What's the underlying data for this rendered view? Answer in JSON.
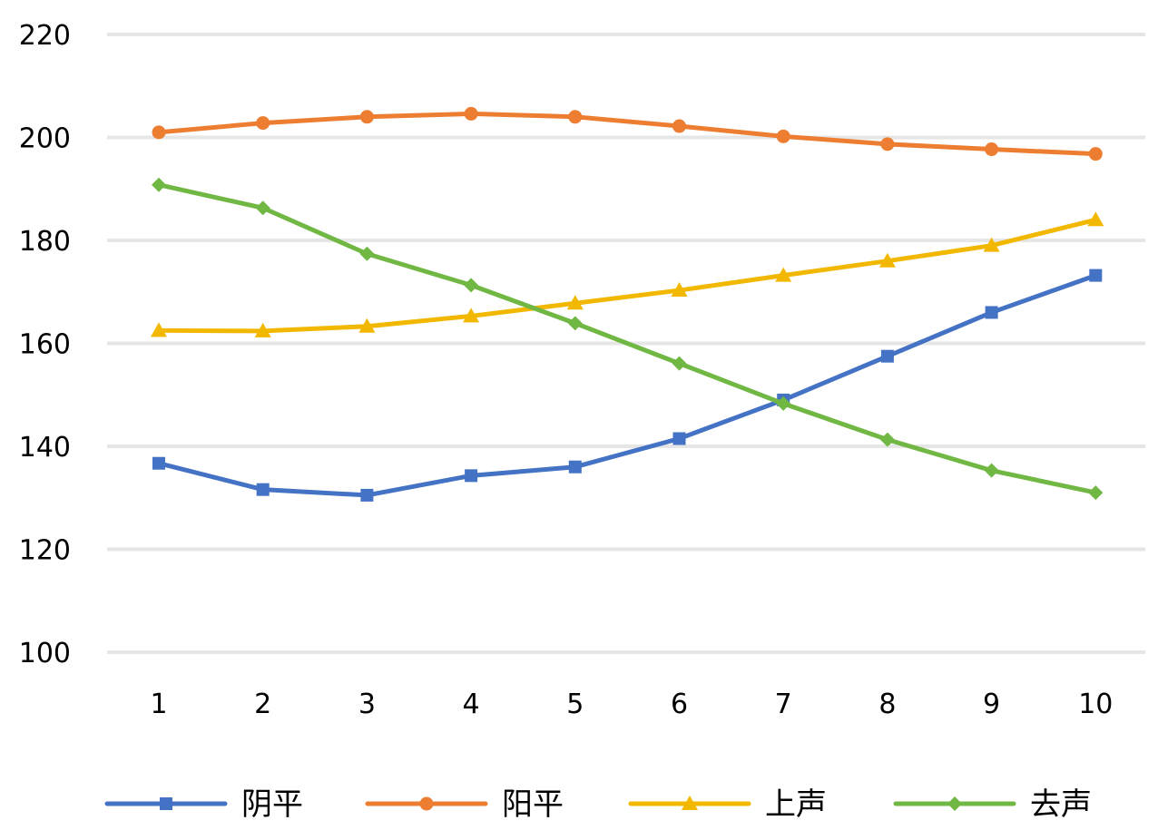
{
  "chart_data": {
    "type": "line",
    "title": "",
    "xlabel": "",
    "ylabel": "",
    "categories": [
      "1",
      "2",
      "3",
      "4",
      "5",
      "6",
      "7",
      "8",
      "9",
      "10"
    ],
    "ylim": [
      100,
      220
    ],
    "yticks": [
      "100",
      "120",
      "140",
      "160",
      "180",
      "200",
      "220"
    ],
    "grid": true,
    "legend_position": "bottom",
    "series": [
      {
        "name": "阴平",
        "color": "#4472C4",
        "marker": "square",
        "values": [
          136.7,
          131.6,
          130.5,
          134.3,
          136.0,
          141.5,
          149.0,
          157.5,
          166.0,
          173.2
        ]
      },
      {
        "name": "阳平",
        "color": "#ED7D31",
        "marker": "circle",
        "values": [
          201.0,
          202.8,
          204.0,
          204.6,
          204.0,
          202.2,
          200.2,
          198.7,
          197.7,
          196.8
        ]
      },
      {
        "name": "上声",
        "color": "#F2B800",
        "marker": "triangle",
        "values": [
          162.5,
          162.4,
          163.3,
          165.3,
          167.8,
          170.3,
          173.2,
          176.0,
          179.0,
          184.0
        ]
      },
      {
        "name": "去声",
        "color": "#70B843",
        "marker": "diamond",
        "values": [
          190.8,
          186.3,
          177.4,
          171.3,
          163.9,
          156.1,
          148.3,
          141.3,
          135.3,
          131.0
        ]
      }
    ]
  }
}
